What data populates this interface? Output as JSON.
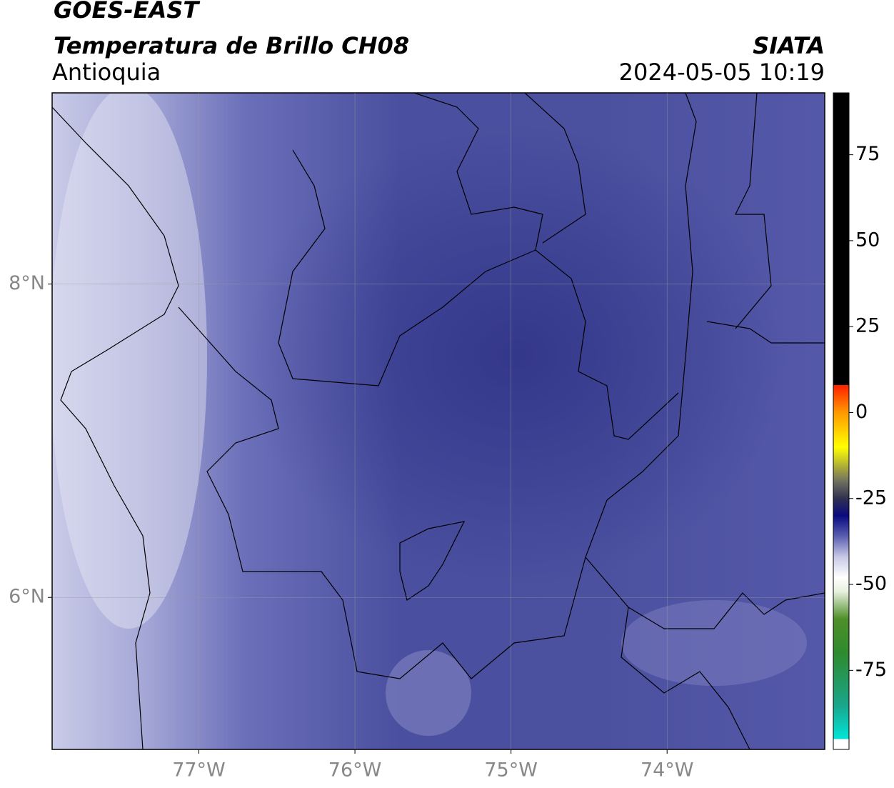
{
  "header": {
    "title": "GOES-EAST",
    "subtitle": "Temperatura de Brillo CH08",
    "region": "Antioquia",
    "source": "SIATA",
    "datetime": "2024-05-05 10:19"
  },
  "map": {
    "xlim": [
      -77.94,
      -72.99
    ],
    "ylim": [
      5.03,
      9.22
    ],
    "xticks": [
      {
        "value": -77,
        "label": "77°W"
      },
      {
        "value": -76,
        "label": "76°W"
      },
      {
        "value": -75,
        "label": "75°W"
      },
      {
        "value": -74,
        "label": "74°W"
      }
    ],
    "yticks": [
      {
        "value": 8,
        "label": "8°N"
      },
      {
        "value": 6,
        "label": "6°N"
      }
    ],
    "grid": true
  },
  "colorbar": {
    "lim": [
      -98,
      93
    ],
    "ticks": [
      75,
      50,
      25,
      0,
      -25,
      -50,
      -75
    ],
    "colormap": [
      {
        "value": -98,
        "color": "#ffffff"
      },
      {
        "value": -95,
        "color": "#ffffff"
      },
      {
        "value": -95,
        "color": "#00e5d8"
      },
      {
        "value": -85,
        "color": "#1aa58a"
      },
      {
        "value": -70,
        "color": "#2e8b2e"
      },
      {
        "value": -60,
        "color": "#4f8f2a"
      },
      {
        "value": -52,
        "color": "#e8f0e0"
      },
      {
        "value": -48,
        "color": "#ffffff"
      },
      {
        "value": -42,
        "color": "#c8c8e6"
      },
      {
        "value": -36,
        "color": "#5a5fb0"
      },
      {
        "value": -30,
        "color": "#0a0a80"
      },
      {
        "value": -25,
        "color": "#303050"
      },
      {
        "value": -20,
        "color": "#707060"
      },
      {
        "value": -10,
        "color": "#ffff00"
      },
      {
        "value": 0,
        "color": "#ff9900"
      },
      {
        "value": 8,
        "color": "#ff2000"
      },
      {
        "value": 8,
        "color": "#000000"
      },
      {
        "value": 93,
        "color": "#000000"
      }
    ]
  }
}
